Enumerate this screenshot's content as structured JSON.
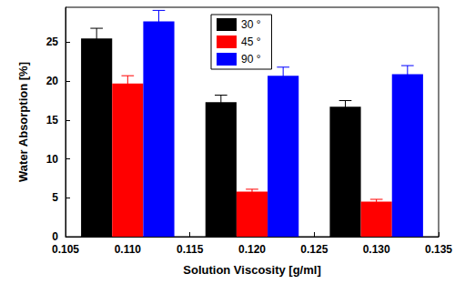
{
  "chart_data": {
    "type": "bar",
    "x_label": "Solution Viscosity [g/ml]",
    "y_label": "Water Absorption [%]",
    "xlim": [
      0.105,
      0.135
    ],
    "xticks": [
      0.105,
      {
        "value": 0.11,
        "label": "0.110"
      },
      0.115,
      {
        "value": 0.12,
        "label": "0.120"
      },
      0.125,
      {
        "value": 0.13,
        "label": "0.130"
      },
      0.135
    ],
    "ylim": [
      0,
      29.5
    ],
    "yticks": [
      0,
      5,
      10,
      15,
      20,
      25
    ],
    "legend": "top",
    "grid": false,
    "series": [
      {
        "name": "30 °",
        "color": "#000000",
        "x": [
          0.1075,
          0.1175,
          0.1275
        ],
        "values": [
          25.5,
          17.3,
          16.7
        ],
        "errors": [
          1.3,
          0.9,
          0.8
        ]
      },
      {
        "name": "45 °",
        "color": "#ff0000",
        "x": [
          0.11,
          0.12,
          0.13
        ],
        "values": [
          19.7,
          5.8,
          4.5
        ],
        "errors": [
          1.0,
          0.3,
          0.3
        ]
      },
      {
        "name": "90 °",
        "color": "#0000ff",
        "x": [
          0.1125,
          0.1225,
          0.1325
        ],
        "values": [
          27.7,
          20.7,
          20.9
        ],
        "errors": [
          1.4,
          1.1,
          1.1
        ]
      }
    ]
  }
}
